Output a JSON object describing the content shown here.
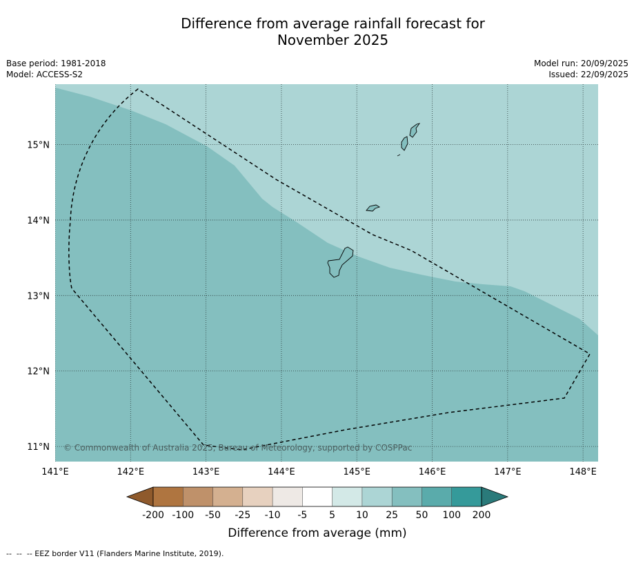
{
  "title": {
    "line1": "Difference from average rainfall forecast for",
    "line2": "November 2025"
  },
  "meta": {
    "base_period": "Base period: 1981-2018",
    "model": "Model: ACCESS-S2",
    "model_run": "Model run: 20/09/2025",
    "issued": "Issued: 22/09/2025"
  },
  "map": {
    "lon_range": [
      141.0,
      148.2
    ],
    "lat_range": [
      10.8,
      15.8
    ],
    "lon_ticks": [
      141,
      142,
      143,
      144,
      145,
      146,
      147,
      148
    ],
    "lon_tick_labels": [
      "141°E",
      "142°E",
      "143°E",
      "144°E",
      "145°E",
      "146°E",
      "147°E",
      "148°E"
    ],
    "lat_ticks": [
      15,
      14,
      13,
      12,
      11
    ],
    "lat_tick_labels": [
      "15°N",
      "14°N",
      "13°N",
      "12°N",
      "11°N"
    ],
    "colors": {
      "zone_10_25": "#acd5d5",
      "zone_25_50": "#84bfbf",
      "gridline": "#2a3838",
      "eez_border": "#000000",
      "island_fill": "#84bfbf",
      "island_outline": "#000000"
    },
    "copyright": "© Commonwealth of Australia 2025, Bureau of Meteorology, supported by COSPPac",
    "icons": [
      "island-guam",
      "island-rota",
      "island-saipan",
      "eez-border"
    ]
  },
  "colorbar": {
    "title": "Difference from average (mm)",
    "labels": [
      "-200",
      "-100",
      "-50",
      "-25",
      "-10",
      "-5",
      "5",
      "10",
      "25",
      "50",
      "100",
      "200"
    ],
    "colors": [
      "#8f5a2c",
      "#af7540",
      "#bf916a",
      "#d4b090",
      "#e7d1bf",
      "#eee9e5",
      "#ffffff",
      "#d3e9e7",
      "#acd5d5",
      "#84bfbf",
      "#5aabab",
      "#359a9a",
      "#2a7a7a"
    ]
  },
  "footnote": "--  --  -- EEZ border V11 (Flanders Marine Institute, 2019)."
}
